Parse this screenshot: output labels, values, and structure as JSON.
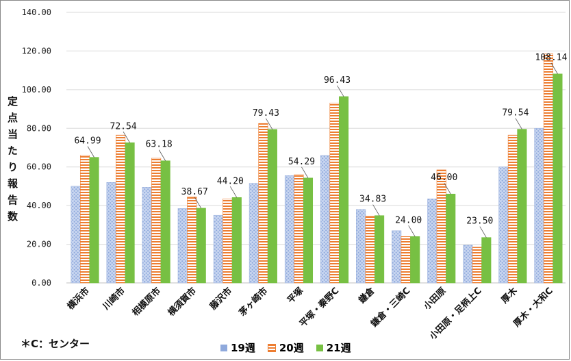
{
  "chart_data": {
    "type": "bar",
    "ylabel": "定点当たり報告数",
    "ylim": [
      0,
      140
    ],
    "yticks": [
      "0.00",
      "20.00",
      "40.00",
      "60.00",
      "80.00",
      "100.00",
      "120.00",
      "140.00"
    ],
    "categories": [
      "横浜市",
      "川崎市",
      "相模原市",
      "横須賀市",
      "藤沢市",
      "茅ヶ崎市",
      "平塚",
      "平塚・秦野C",
      "鎌倉",
      "鎌倉・三崎C",
      "小田原",
      "小田原・足柄上C",
      "厚木",
      "厚木・大和C"
    ],
    "series": [
      {
        "name": "19週",
        "color": "#8fa9dc",
        "pattern": "dots",
        "values": [
          50.0,
          52.0,
          49.5,
          38.5,
          35.0,
          51.5,
          55.5,
          66.0,
          38.0,
          27.0,
          43.5,
          19.5,
          60.0,
          80.0
        ]
      },
      {
        "name": "20週",
        "color": "#ed7d31",
        "pattern": "stripes",
        "values": [
          66.0,
          76.5,
          64.5,
          44.5,
          43.5,
          82.5,
          56.0,
          93.0,
          34.5,
          24.0,
          58.5,
          18.5,
          76.5,
          118.5
        ]
      },
      {
        "name": "21週",
        "color": "#77c043",
        "pattern": "solid",
        "values": [
          64.99,
          72.54,
          63.18,
          38.67,
          44.2,
          79.43,
          54.29,
          96.43,
          34.83,
          24.0,
          46.0,
          23.5,
          79.54,
          108.14
        ]
      }
    ],
    "data_labels": [
      "64.99",
      "72.54",
      "63.18",
      "38.67",
      "44.20",
      "79.43",
      "54.29",
      "96.43",
      "34.83",
      "24.00",
      "46.00",
      "23.50",
      "79.54",
      "108.14"
    ],
    "legend_position": "bottom",
    "grid": "horizontal"
  },
  "footnote": "＊C：センター"
}
